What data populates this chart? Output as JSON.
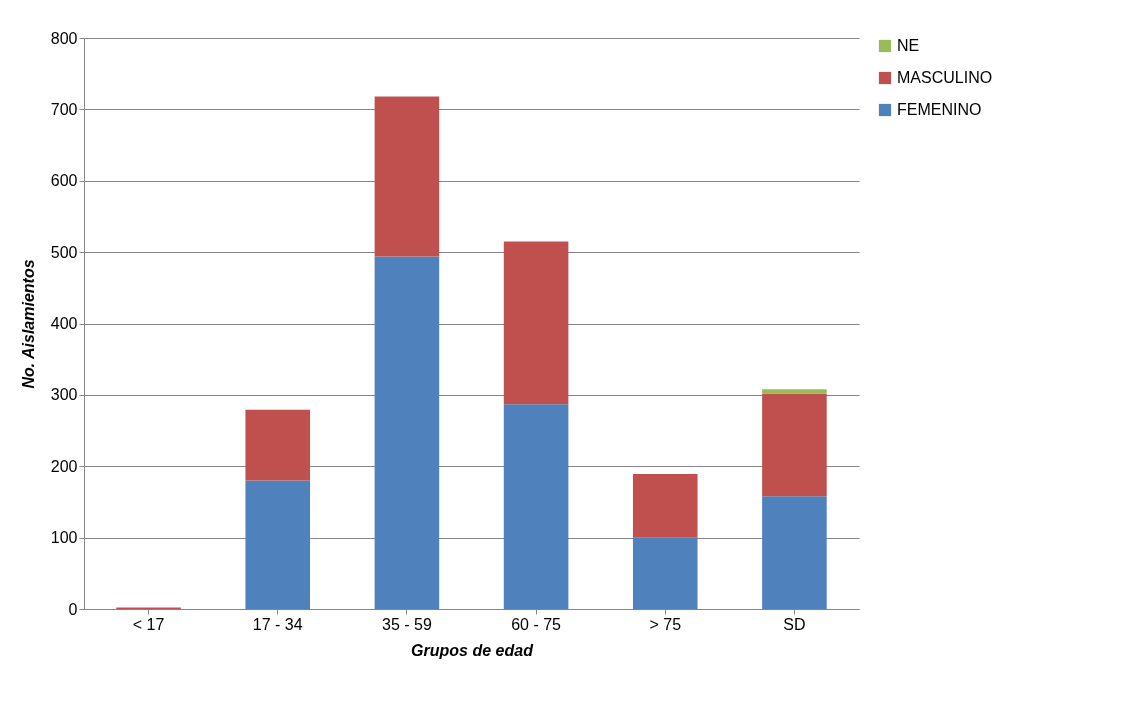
{
  "chart_data": {
    "type": "bar",
    "stacked": true,
    "xlabel": "Grupos de edad",
    "ylabel": "No. Aislamientos",
    "categories": [
      "< 17",
      "17 - 34",
      "35 - 59",
      "60 - 75",
      "> 75",
      "SD"
    ],
    "series": [
      {
        "name": "FEMENINO",
        "color": "#4f81bd",
        "values": [
          0,
          180,
          494,
          287,
          100,
          158
        ]
      },
      {
        "name": "MASCULINO",
        "color": "#c0504d",
        "values": [
          2,
          99,
          224,
          228,
          89,
          144
        ]
      },
      {
        "name": "NE",
        "color": "#9bbb59",
        "values": [
          0,
          0,
          0,
          0,
          0,
          6
        ]
      }
    ],
    "ylim": [
      0,
      800
    ],
    "yticks": [
      0,
      100,
      200,
      300,
      400,
      500,
      600,
      700,
      800
    ],
    "grid": "y",
    "legend": "right"
  }
}
